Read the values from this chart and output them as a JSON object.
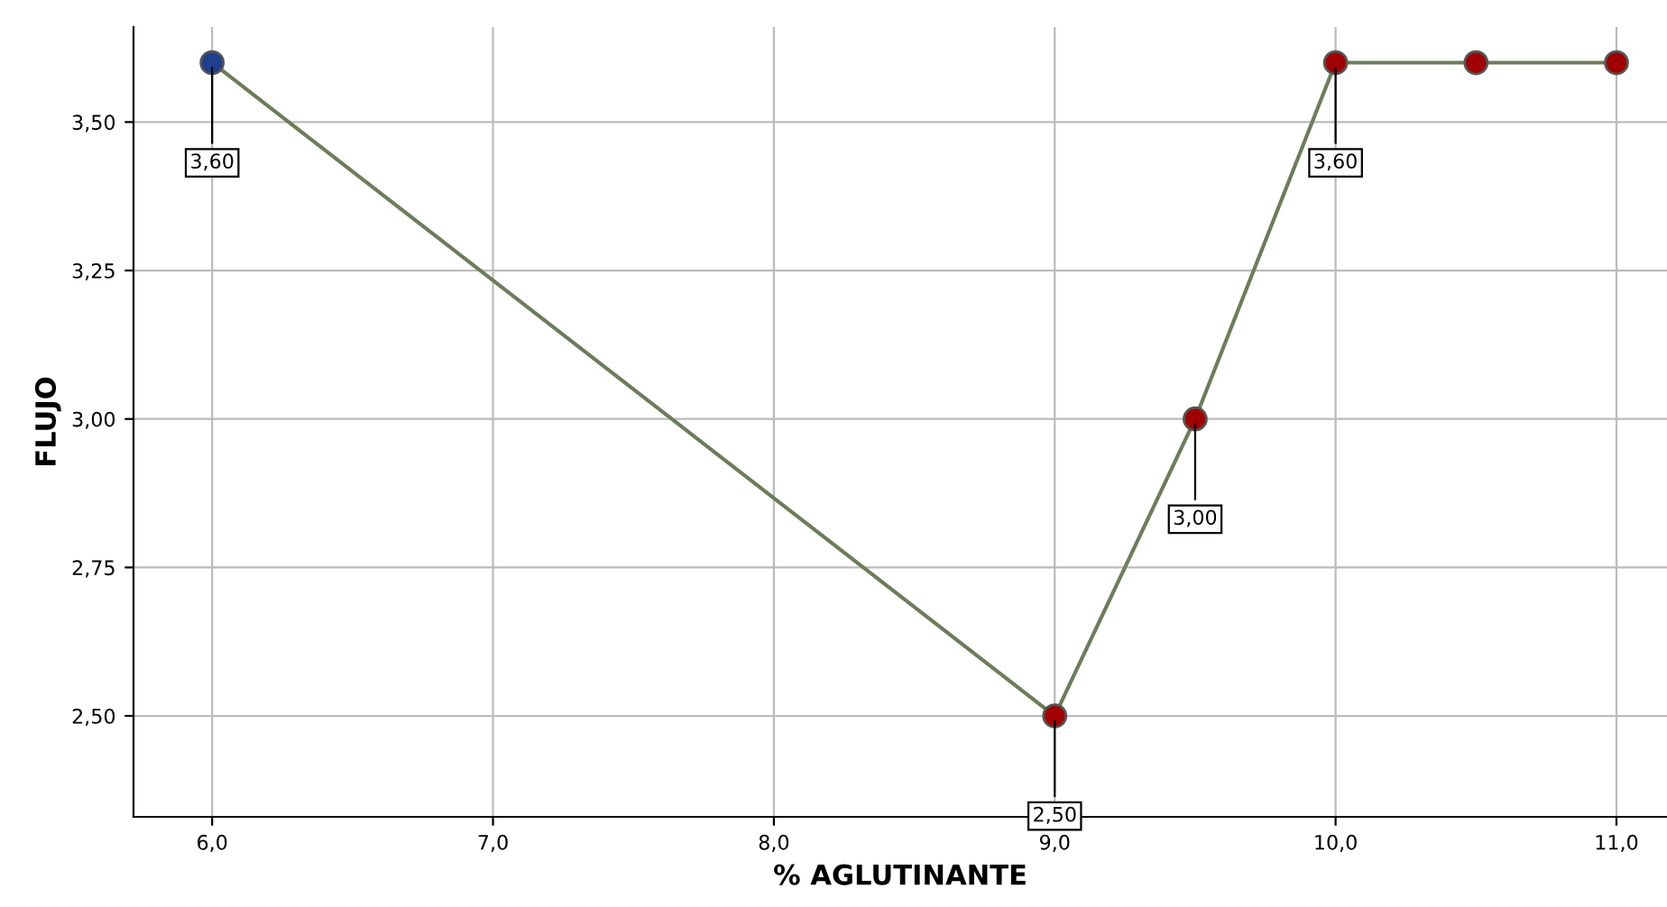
{
  "chart_data": {
    "type": "line",
    "xlabel": "% AGLUTINANTE",
    "ylabel": "FLUJO",
    "x": [
      6.0,
      9.0,
      9.5,
      10.0,
      10.5,
      11.0
    ],
    "series": [
      {
        "color": "#6b7d5a",
        "values": [
          3.6,
          2.5,
          3.0,
          3.6,
          3.6,
          3.6
        ],
        "colors": [
          "#1f3f8f",
          "#a00000",
          "#a00000",
          "#a00000",
          "#a00000",
          "#a00000"
        ],
        "value_labels": [
          "3,60",
          "2,50",
          "3,00",
          "3,60",
          null,
          null
        ]
      }
    ],
    "xlim": [
      5.72,
      11.18
    ],
    "ylim": [
      2.33,
      3.66
    ],
    "xticks": [
      {
        "value": 6,
        "label": "6,0"
      },
      {
        "value": 7,
        "label": "7,0"
      },
      {
        "value": 8,
        "label": "8,0"
      },
      {
        "value": 9,
        "label": "9,0"
      },
      {
        "value": 10,
        "label": "10,0"
      },
      {
        "value": 11,
        "label": "11,0"
      }
    ],
    "yticks": [
      {
        "value": 2.5,
        "label": "2,50"
      },
      {
        "value": 2.75,
        "label": "2,75"
      },
      {
        "value": 3.0,
        "label": "3,00"
      },
      {
        "value": 3.25,
        "label": "3,25"
      },
      {
        "value": 3.5,
        "label": "3,50"
      }
    ],
    "grid": true,
    "marker": "circle",
    "line_style": "solid",
    "legend": false
  }
}
